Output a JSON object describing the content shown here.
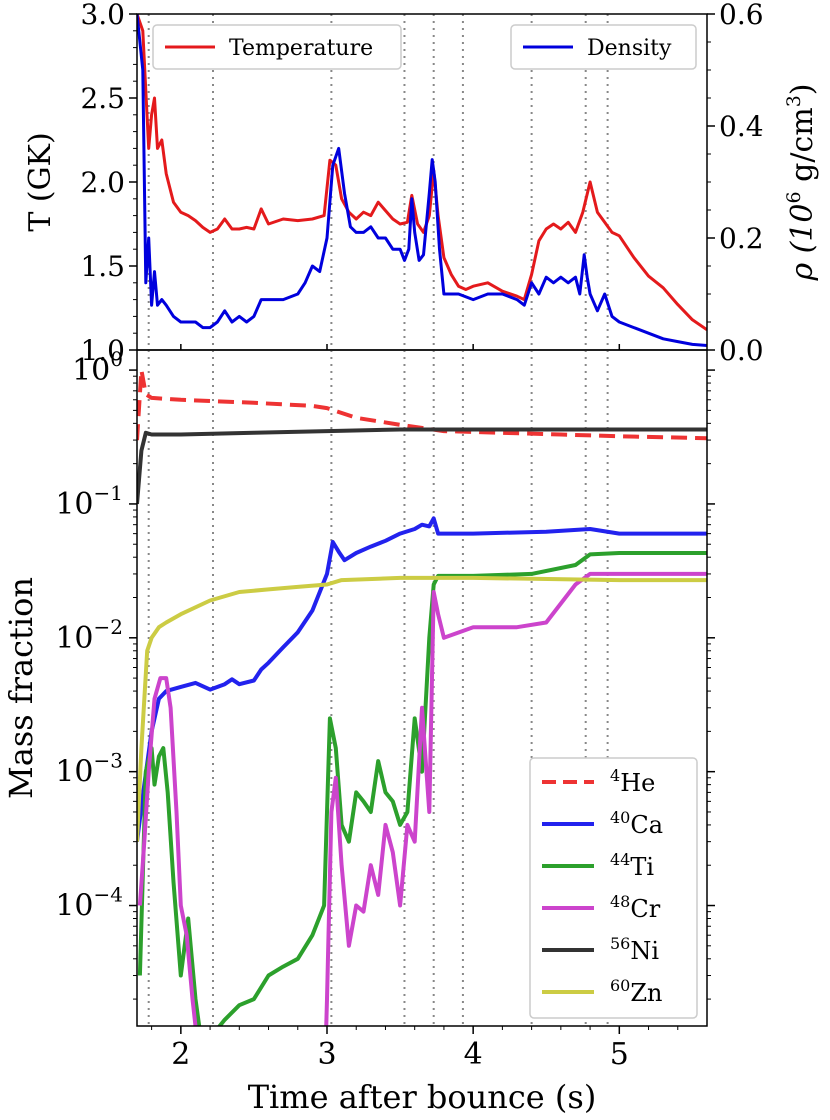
{
  "chart_data": [
    {
      "type": "line",
      "panel": "top",
      "ylabel": "T (GK)",
      "ylabel_right_parts": [
        "ρ (10",
        "6",
        " g/cm",
        "3",
        ")"
      ],
      "xlim": [
        1.7,
        5.6
      ],
      "ylim": [
        1.0,
        3.0
      ],
      "ylim_right": [
        0.0,
        0.6
      ],
      "yticks": [
        "1.0",
        "1.5",
        "2.0",
        "2.5",
        "3.0"
      ],
      "yticks_right": [
        "0.0",
        "0.2",
        "0.4",
        "0.6"
      ],
      "legend_placement": "top-left and top-right",
      "series": [
        {
          "name": "Temperature",
          "axis": "left",
          "color": "#e41a1c",
          "x": [
            1.7,
            1.74,
            1.78,
            1.8,
            1.82,
            1.84,
            1.87,
            1.9,
            1.95,
            2.0,
            2.05,
            2.1,
            2.15,
            2.2,
            2.25,
            2.3,
            2.35,
            2.4,
            2.45,
            2.5,
            2.55,
            2.6,
            2.7,
            2.8,
            2.9,
            2.98,
            3.02,
            3.06,
            3.1,
            3.15,
            3.2,
            3.25,
            3.3,
            3.35,
            3.4,
            3.45,
            3.5,
            3.55,
            3.58,
            3.62,
            3.66,
            3.7,
            3.73,
            3.76,
            3.8,
            3.85,
            3.9,
            3.95,
            4.0,
            4.1,
            4.2,
            4.3,
            4.35,
            4.4,
            4.45,
            4.5,
            4.55,
            4.6,
            4.65,
            4.7,
            4.75,
            4.8,
            4.85,
            4.9,
            4.95,
            5.0,
            5.1,
            5.2,
            5.3,
            5.4,
            5.5,
            5.6
          ],
          "y": [
            3.0,
            2.9,
            2.2,
            2.4,
            2.5,
            2.2,
            2.25,
            2.05,
            1.88,
            1.82,
            1.8,
            1.77,
            1.73,
            1.7,
            1.72,
            1.78,
            1.72,
            1.72,
            1.73,
            1.72,
            1.84,
            1.75,
            1.78,
            1.77,
            1.78,
            1.8,
            2.13,
            2.1,
            1.9,
            1.82,
            1.78,
            1.82,
            1.8,
            1.88,
            1.83,
            1.78,
            1.75,
            1.76,
            1.92,
            1.75,
            1.7,
            1.8,
            2.07,
            1.8,
            1.55,
            1.45,
            1.38,
            1.36,
            1.38,
            1.4,
            1.35,
            1.32,
            1.3,
            1.45,
            1.65,
            1.72,
            1.75,
            1.72,
            1.76,
            1.7,
            1.82,
            2.0,
            1.82,
            1.76,
            1.7,
            1.68,
            1.55,
            1.44,
            1.37,
            1.27,
            1.18,
            1.12
          ]
        },
        {
          "name": "Density",
          "axis": "right",
          "color": "#0000dd",
          "x": [
            1.7,
            1.74,
            1.76,
            1.78,
            1.8,
            1.82,
            1.84,
            1.87,
            1.9,
            1.95,
            2.0,
            2.05,
            2.1,
            2.15,
            2.2,
            2.25,
            2.3,
            2.35,
            2.4,
            2.45,
            2.5,
            2.55,
            2.6,
            2.7,
            2.8,
            2.85,
            2.9,
            2.95,
            3.0,
            3.04,
            3.08,
            3.12,
            3.16,
            3.2,
            3.25,
            3.3,
            3.35,
            3.4,
            3.45,
            3.5,
            3.53,
            3.56,
            3.58,
            3.6,
            3.63,
            3.66,
            3.7,
            3.72,
            3.74,
            3.77,
            3.8,
            3.85,
            3.9,
            4.0,
            4.1,
            4.2,
            4.3,
            4.35,
            4.4,
            4.45,
            4.5,
            4.55,
            4.6,
            4.65,
            4.7,
            4.73,
            4.76,
            4.78,
            4.8,
            4.85,
            4.9,
            4.95,
            5.0,
            5.1,
            5.2,
            5.3,
            5.4,
            5.5,
            5.6
          ],
          "y": [
            0.6,
            0.5,
            0.12,
            0.2,
            0.08,
            0.14,
            0.08,
            0.09,
            0.08,
            0.06,
            0.05,
            0.05,
            0.05,
            0.04,
            0.04,
            0.05,
            0.07,
            0.05,
            0.06,
            0.05,
            0.06,
            0.09,
            0.09,
            0.09,
            0.1,
            0.12,
            0.15,
            0.14,
            0.2,
            0.33,
            0.36,
            0.28,
            0.22,
            0.21,
            0.21,
            0.22,
            0.2,
            0.2,
            0.18,
            0.18,
            0.16,
            0.18,
            0.27,
            0.21,
            0.16,
            0.17,
            0.28,
            0.34,
            0.3,
            0.18,
            0.1,
            0.1,
            0.1,
            0.09,
            0.1,
            0.1,
            0.09,
            0.08,
            0.12,
            0.1,
            0.13,
            0.12,
            0.13,
            0.12,
            0.13,
            0.1,
            0.17,
            0.13,
            0.1,
            0.07,
            0.1,
            0.06,
            0.05,
            0.04,
            0.03,
            0.02,
            0.015,
            0.01,
            0.008
          ]
        }
      ]
    },
    {
      "type": "line",
      "panel": "bottom",
      "ylabel": "Mass fraction",
      "xlabel": "Time after bounce (s)",
      "xlim": [
        1.7,
        5.6
      ],
      "ylim_log10": [
        -4.9,
        0.15
      ],
      "yscale": "log",
      "xticks": [
        "2",
        "3",
        "4",
        "5"
      ],
      "yticks": [
        {
          "base": "10",
          "exp": "0"
        },
        {
          "base": "10",
          "exp": "−1"
        },
        {
          "base": "10",
          "exp": "−2"
        },
        {
          "base": "10",
          "exp": "−3"
        },
        {
          "base": "10",
          "exp": "−4"
        }
      ],
      "legend_placement": "bottom-right",
      "vertical_lines": [
        1.78,
        2.22,
        3.03,
        3.53,
        3.73,
        3.93,
        4.4,
        4.77,
        4.92
      ],
      "series": [
        {
          "label_mass": "4",
          "label_el": "He",
          "dash": true,
          "color": "#ee3333",
          "x": [
            1.7,
            1.73,
            1.76,
            1.8,
            2.0,
            2.5,
            2.9,
            3.0,
            3.2,
            3.5,
            3.8,
            4.2,
            4.6,
            5.0,
            5.6
          ],
          "y": [
            0.3,
            1.0,
            0.66,
            0.62,
            0.6,
            0.57,
            0.54,
            0.52,
            0.44,
            0.39,
            0.35,
            0.34,
            0.33,
            0.32,
            0.31
          ]
        },
        {
          "label_mass": "40",
          "label_el": "Ca",
          "dash": false,
          "color": "#2222ee",
          "x": [
            1.7,
            1.75,
            1.8,
            1.85,
            1.9,
            2.0,
            2.1,
            2.2,
            2.3,
            2.35,
            2.4,
            2.5,
            2.55,
            2.6,
            2.7,
            2.8,
            2.9,
            3.0,
            3.04,
            3.08,
            3.12,
            3.2,
            3.3,
            3.4,
            3.5,
            3.6,
            3.65,
            3.7,
            3.73,
            3.76,
            3.8,
            4.0,
            4.5,
            4.8,
            5.0,
            5.6
          ],
          "y": [
            0.0003,
            0.0008,
            0.002,
            0.0035,
            0.004,
            0.0043,
            0.0046,
            0.0041,
            0.0045,
            0.0049,
            0.0045,
            0.0048,
            0.0058,
            0.0065,
            0.0085,
            0.011,
            0.016,
            0.03,
            0.052,
            0.044,
            0.038,
            0.043,
            0.048,
            0.053,
            0.06,
            0.065,
            0.07,
            0.068,
            0.078,
            0.06,
            0.06,
            0.06,
            0.062,
            0.065,
            0.06,
            0.06
          ]
        },
        {
          "label_mass": "44",
          "label_el": "Ti",
          "dash": false,
          "color": "#2ca02c",
          "x": [
            1.72,
            1.76,
            1.8,
            1.82,
            1.85,
            1.88,
            1.91,
            1.95,
            2.0,
            2.05,
            2.1,
            2.15,
            2.2,
            2.25,
            2.3,
            2.4,
            2.5,
            2.6,
            2.7,
            2.8,
            2.9,
            2.98,
            3.02,
            3.06,
            3.1,
            3.15,
            3.2,
            3.25,
            3.3,
            3.35,
            3.4,
            3.45,
            3.5,
            3.55,
            3.6,
            3.65,
            3.7,
            3.73,
            3.76,
            3.8,
            4.0,
            4.4,
            4.7,
            4.8,
            5.0,
            5.6
          ],
          "y": [
            3e-05,
            0.001,
            0.0015,
            0.0008,
            0.0013,
            0.0015,
            0.0007,
            0.00015,
            3e-05,
            8e-05,
            2e-05,
            8e-06,
            5e-06,
            1.2e-05,
            1.4e-05,
            1.8e-05,
            2e-05,
            3e-05,
            3.5e-05,
            4e-05,
            6e-05,
            0.0001,
            0.0025,
            0.0015,
            0.0004,
            0.0003,
            0.0007,
            0.0006,
            0.0005,
            0.0012,
            0.0007,
            0.0006,
            0.0004,
            0.0005,
            0.0025,
            0.001,
            0.01,
            0.025,
            0.029,
            0.029,
            0.029,
            0.03,
            0.035,
            0.042,
            0.043,
            0.043
          ]
        },
        {
          "label_mass": "48",
          "label_el": "Cr",
          "dash": false,
          "color": "#cc44cc",
          "x": [
            1.72,
            1.75,
            1.78,
            1.82,
            1.86,
            1.9,
            1.93,
            1.97,
            2.0,
            2.04,
            2.08,
            2.12,
            2.2,
            2.4,
            2.8,
            2.99,
            3.0,
            3.03,
            3.06,
            3.1,
            3.15,
            3.2,
            3.25,
            3.3,
            3.35,
            3.4,
            3.45,
            3.5,
            3.55,
            3.6,
            3.65,
            3.7,
            3.73,
            3.76,
            3.8,
            4.0,
            4.3,
            4.5,
            4.7,
            4.8,
            5.0,
            5.6
          ],
          "y": [
            0.0001,
            0.0003,
            0.001,
            0.0035,
            0.005,
            0.005,
            0.003,
            0.0005,
            0.0001,
            6e-05,
            2e-05,
            8e-06,
            4e-06,
            2e-06,
            2e-06,
            8e-06,
            2e-05,
            0.0005,
            0.0009,
            0.0002,
            5e-05,
            0.0001,
            9e-05,
            0.0002,
            0.00012,
            0.0004,
            0.00025,
            0.0001,
            0.0004,
            0.0003,
            0.003,
            0.0005,
            0.022,
            0.015,
            0.01,
            0.012,
            0.012,
            0.013,
            0.025,
            0.03,
            0.03,
            0.03
          ]
        },
        {
          "label_mass": "56",
          "label_el": "Ni",
          "dash": false,
          "color": "#333333",
          "x": [
            1.7,
            1.73,
            1.76,
            1.8,
            2.0,
            2.5,
            3.0,
            3.5,
            4.0,
            5.0,
            5.6
          ],
          "y": [
            0.1,
            0.25,
            0.34,
            0.33,
            0.33,
            0.34,
            0.35,
            0.36,
            0.36,
            0.36,
            0.36
          ]
        },
        {
          "label_mass": "60",
          "label_el": "Zn",
          "dash": false,
          "color": "#cccc44",
          "x": [
            1.7,
            1.73,
            1.77,
            1.8,
            1.85,
            1.9,
            2.0,
            2.2,
            2.4,
            2.6,
            2.8,
            3.0,
            3.1,
            3.5,
            4.0,
            5.0,
            5.6
          ],
          "y": [
            0.0003,
            0.0015,
            0.008,
            0.01,
            0.012,
            0.013,
            0.015,
            0.019,
            0.022,
            0.023,
            0.024,
            0.025,
            0.027,
            0.028,
            0.028,
            0.027,
            0.027
          ]
        }
      ]
    }
  ]
}
